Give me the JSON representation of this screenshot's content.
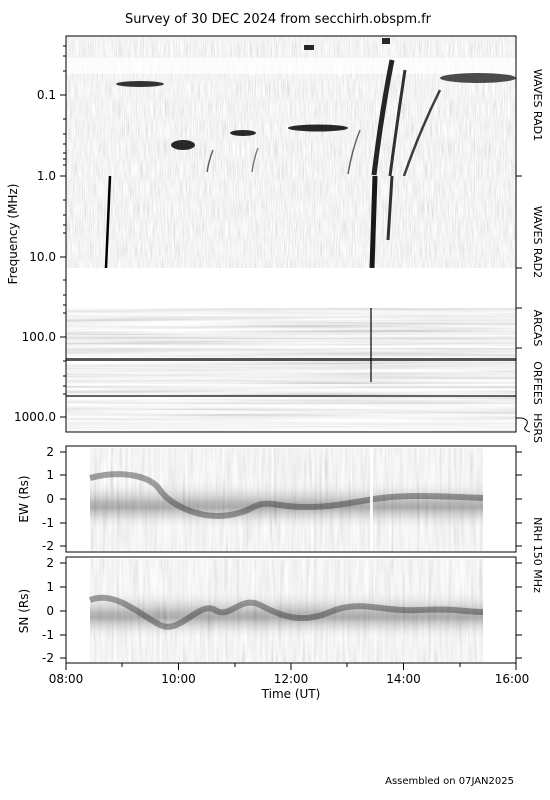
{
  "chart_data": [
    {
      "type": "heatmap",
      "title": "Survey of 30 DEC 2024 from secchirh.obspm.fr",
      "xlabel": "Time (UT)",
      "ylabel": "Frequency (MHz)",
      "x_ticks": [
        "08:00",
        "10:00",
        "12:00",
        "14:00",
        "16:00"
      ],
      "xlim": [
        "08:00",
        "16:00"
      ],
      "y_scale": "log",
      "y_ticks": [
        "0.1",
        "1.0",
        "10.0",
        "100.0",
        "1000.0"
      ],
      "instrument_labels": [
        "WAVES RAD1",
        "WAVES RAD2",
        "ARCAS",
        "ORFEES",
        "HSRS"
      ]
    },
    {
      "type": "heatmap",
      "ylabel": "EW (Rs)",
      "y_ticks": [
        "2",
        "1",
        "0",
        "-1",
        "-2"
      ],
      "ylim": [
        -2,
        2
      ]
    },
    {
      "type": "heatmap",
      "ylabel": "SN (Rs)",
      "y_ticks": [
        "2",
        "1",
        "0",
        "-1",
        "-2"
      ],
      "ylim": [
        -2,
        2
      ],
      "instrument_label": "NRH 150 MHz"
    }
  ],
  "footer": "Assembled on 07JAN2025"
}
